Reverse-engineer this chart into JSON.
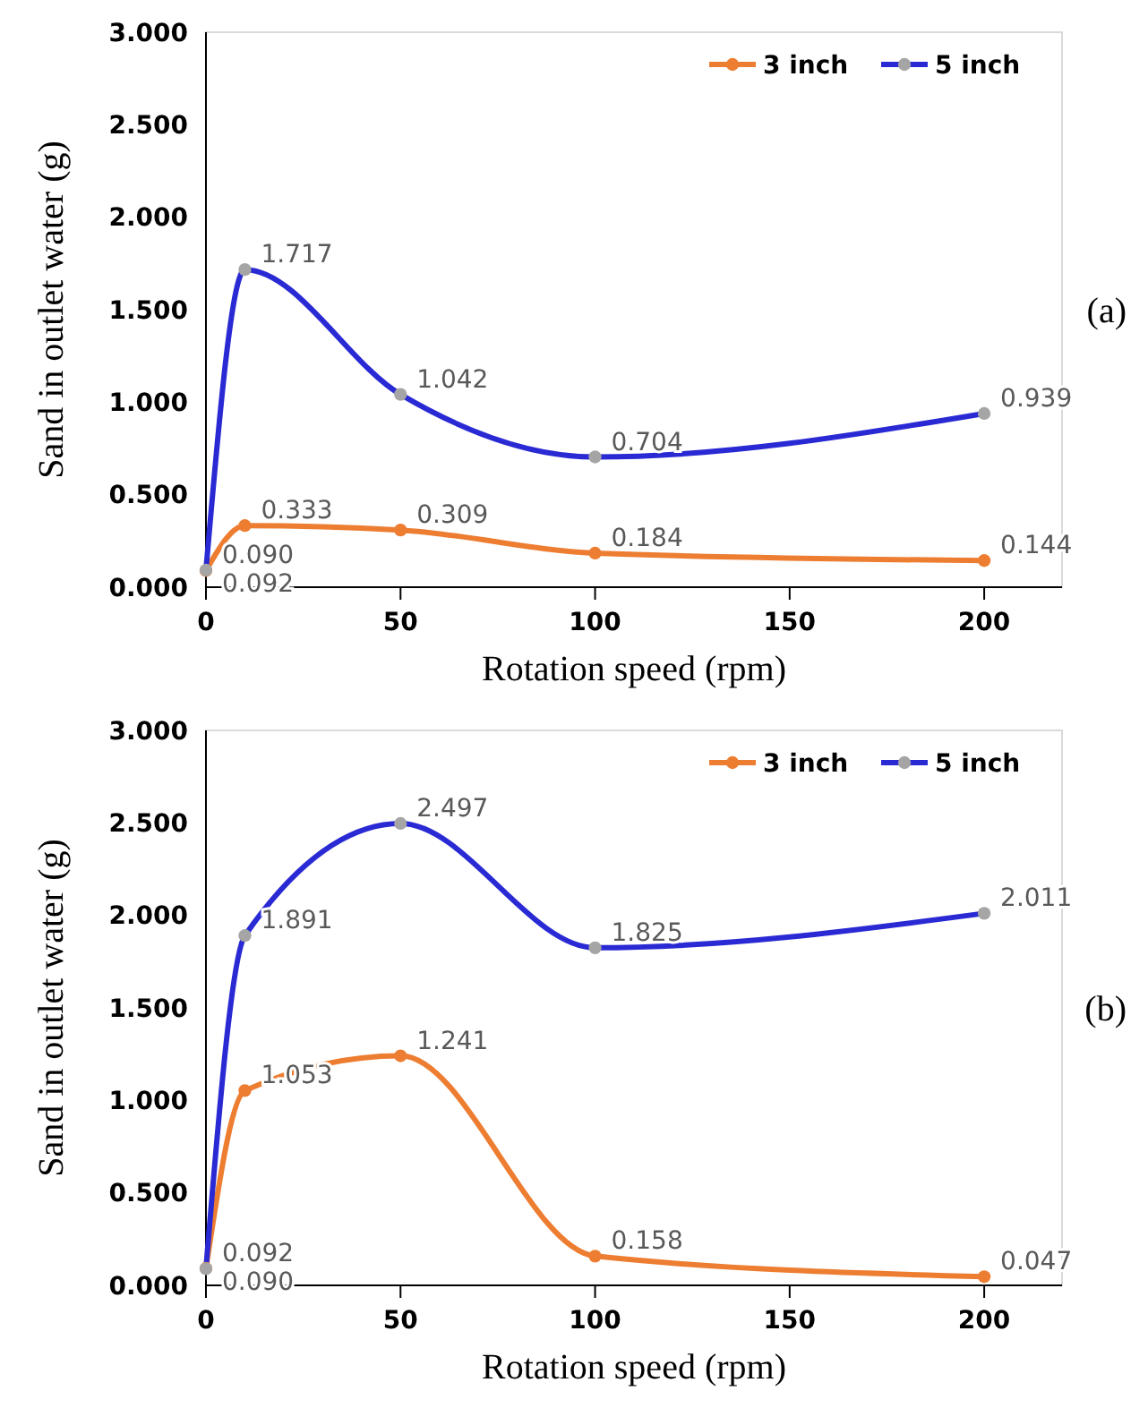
{
  "chart_data": [
    {
      "type": "line",
      "xlabel": "Rotation speed (rpm)",
      "ylabel": "Sand in outlet water (g)",
      "x": [
        0,
        10,
        50,
        100,
        200
      ],
      "xlim": [
        0,
        220
      ],
      "xticks": [
        0,
        50,
        100,
        150,
        200
      ],
      "ylim": [
        0,
        3
      ],
      "yticks": [
        {
          "value": 0,
          "label": "0.000"
        },
        {
          "value": 0.5,
          "label": "0.500"
        },
        {
          "value": 1,
          "label": "1.000"
        },
        {
          "value": 1.5,
          "label": "1.500"
        },
        {
          "value": 2,
          "label": "2.000"
        },
        {
          "value": 2.5,
          "label": "2.500"
        },
        {
          "value": 3,
          "label": "3.000"
        }
      ],
      "marker": "circle",
      "legend": "top right",
      "grid": false,
      "annotations": [
        "(a)"
      ],
      "series": [
        {
          "name": "3 inch",
          "color": "#ed7d31",
          "values": [
            0.09,
            0.333,
            0.309,
            0.184,
            0.144
          ],
          "value_labels": [
            "0.090",
            "0.333",
            "0.309",
            "0.184",
            "0.144"
          ]
        },
        {
          "name": "5 inch",
          "color": "#2a2ad4",
          "colors": [
            "#a5a5a5",
            "#a5a5a5",
            "#a5a5a5",
            "#a5a5a5",
            "#a5a5a5"
          ],
          "values": [
            0.092,
            1.717,
            1.042,
            0.704,
            0.939
          ],
          "value_labels": [
            "0.092",
            "1.717",
            "1.042",
            "0.704",
            "0.939"
          ]
        }
      ]
    },
    {
      "type": "line",
      "xlabel": "Rotation speed (rpm)",
      "ylabel": "Sand in outlet water (g)",
      "x": [
        0,
        10,
        50,
        100,
        200
      ],
      "xlim": [
        0,
        220
      ],
      "xticks": [
        0,
        50,
        100,
        150,
        200
      ],
      "ylim": [
        0,
        3
      ],
      "yticks": [
        {
          "value": 0,
          "label": "0.000"
        },
        {
          "value": 0.5,
          "label": "0.500"
        },
        {
          "value": 1,
          "label": "1.000"
        },
        {
          "value": 1.5,
          "label": "1.500"
        },
        {
          "value": 2,
          "label": "2.000"
        },
        {
          "value": 2.5,
          "label": "2.500"
        },
        {
          "value": 3,
          "label": "3.000"
        }
      ],
      "marker": "circle",
      "legend": "top right",
      "grid": false,
      "annotations": [
        "(b)"
      ],
      "series": [
        {
          "name": "3 inch",
          "color": "#ed7d31",
          "values": [
            0.092,
            1.053,
            1.241,
            0.158,
            0.047
          ],
          "value_labels": [
            "0.092",
            "1.053",
            "1.241",
            "0.158",
            "0.047"
          ]
        },
        {
          "name": "5 inch",
          "color": "#2a2ad4",
          "colors": [
            "#a5a5a5",
            "#a5a5a5",
            "#a5a5a5",
            "#a5a5a5",
            "#a5a5a5"
          ],
          "values": [
            0.09,
            1.891,
            2.497,
            1.825,
            2.011
          ],
          "value_labels": [
            "0.090",
            "1.891",
            "2.497",
            "1.825",
            "2.011"
          ]
        }
      ]
    }
  ]
}
